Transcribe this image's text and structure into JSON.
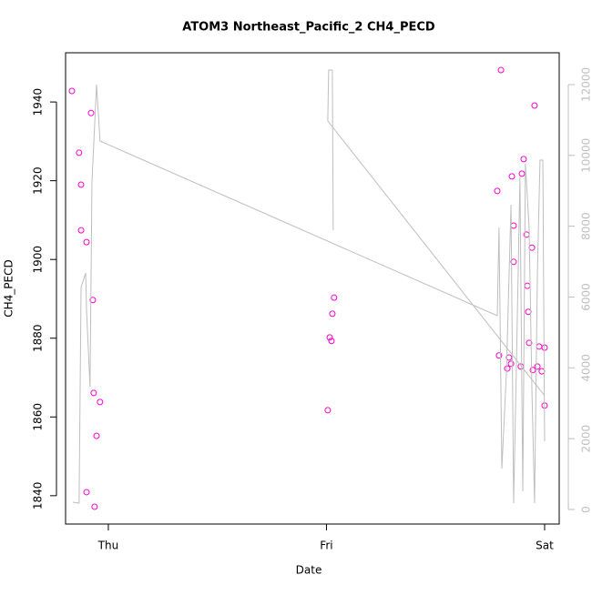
{
  "chart_data": {
    "type": "scatter",
    "title": "ATOM3 Northeast_Pacific_2 CH4_PECD",
    "xlabel": "Date",
    "ylabel": "CH4_PECD",
    "xlim": [
      -0.196,
      2.067
    ],
    "xticks": [
      {
        "value": 0,
        "label": "Thu"
      },
      {
        "value": 1,
        "label": "Fri"
      },
      {
        "value": 2,
        "label": "Sat"
      }
    ],
    "ylim": [
      1832.8,
      1952.5
    ],
    "yticks": [
      1840,
      1860,
      1880,
      1900,
      1920,
      1940
    ],
    "y2lim": [
      -411,
      12898
    ],
    "y2ticks": [
      0,
      2000,
      4000,
      6000,
      8000,
      10000,
      12000
    ],
    "y2color": "#bebebe",
    "series": [
      {
        "type": "scatter",
        "color": "#ff00cc",
        "x": [
          -0.167,
          -0.134,
          -0.125,
          -0.125,
          -0.1,
          -0.079,
          -0.071,
          -0.067,
          -0.038,
          -0.054,
          -0.1,
          -0.063,
          1.006,
          1.015,
          1.023,
          1.027,
          1.035,
          1.8,
          1.783,
          1.791,
          1.829,
          1.837,
          1.846,
          1.85,
          1.858,
          1.858,
          1.891,
          1.896,
          1.904,
          1.917,
          1.921,
          1.925,
          1.929,
          1.942,
          1.946,
          1.954,
          1.967,
          1.975,
          1.987,
          2.0,
          2.0
        ],
        "values": [
          1942.8,
          1927.1,
          1919.0,
          1907.4,
          1904.4,
          1937.2,
          1889.7,
          1866.1,
          1863.8,
          1855.2,
          1840.9,
          1837.2,
          1861.7,
          1880.2,
          1879.3,
          1886.2,
          1890.3,
          1948.1,
          1917.4,
          1875.6,
          1872.3,
          1875.1,
          1873.5,
          1921.1,
          1908.6,
          1899.4,
          1872.8,
          1921.8,
          1925.5,
          1906.3,
          1893.3,
          1886.7,
          1878.8,
          1903.0,
          1871.9,
          1939.1,
          1872.8,
          1877.9,
          1871.6,
          1877.6,
          1862.9
        ]
      },
      {
        "type": "line",
        "axis": "y2",
        "color": "#bebebe",
        "x": [
          -0.163,
          -0.134,
          -0.125,
          -0.104,
          -0.1,
          -0.084,
          -0.075,
          -0.054,
          -0.038,
          1.783,
          1.791,
          1.804,
          1.825,
          1.846,
          1.858,
          1.871,
          1.887,
          1.9,
          1.912,
          1.929,
          1.942,
          1.954,
          1.967,
          1.979,
          1.992,
          2.0,
          null,
          1.031,
          1.027,
          1.01,
          1.006,
          2.0
        ],
        "values": [
          206,
          180,
          6269,
          6680,
          5653,
          3469,
          9250,
          12000,
          10406,
          5473,
          7965,
          1156,
          3854,
          8607,
          180,
          4111,
          9378,
          514,
          9764,
          7965,
          3340,
          180,
          6680,
          9866,
          9866,
          1927,
          null,
          7888,
          12410,
          12410,
          10971,
          3212
        ]
      }
    ]
  }
}
